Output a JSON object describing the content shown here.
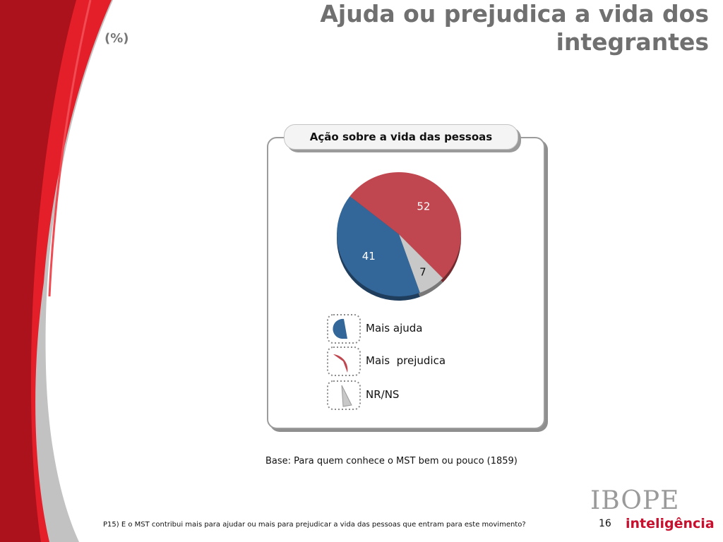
{
  "header": {
    "percent_label": "(%)",
    "title": "Ajuda ou prejudica a vida dos integrantes"
  },
  "panel": {
    "header": "Ação sobre a vida das pessoas"
  },
  "chart_data": {
    "type": "pie",
    "title": "Ação sobre a vida das pessoas",
    "slices": [
      {
        "label": "Mais ajuda",
        "value": 41,
        "color": "#336699"
      },
      {
        "label": "Mais  prejudica",
        "value": 52,
        "color": "#c0464f"
      },
      {
        "label": "NR/NS",
        "value": 7,
        "color": "#c8c8c8"
      }
    ],
    "legend": "bottom"
  },
  "footer": {
    "base": "Base: Para quem conhece o MST bem ou pouco (1859)",
    "question": "P15) E o MST contribui mais para ajudar ou mais para prejudicar a vida das pessoas que entram para este movimento?",
    "page_number": "16"
  },
  "logo": {
    "name": "IBOPE",
    "sub": "inteligência"
  },
  "colors": {
    "brand_red": "#b3121d",
    "accent_red": "#e8212b",
    "side_gray": "#bdbdbd"
  }
}
